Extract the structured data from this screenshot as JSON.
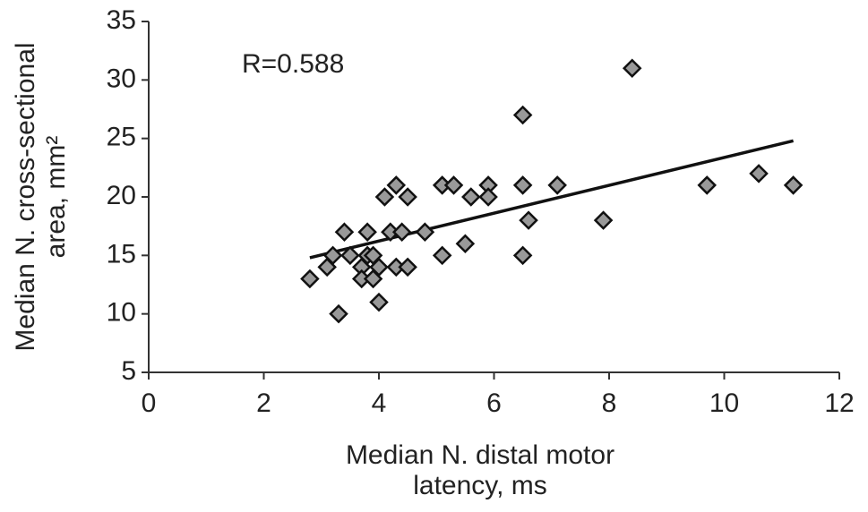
{
  "chart_data": {
    "type": "scatter",
    "annotation": "R=0.588",
    "annotation_color": "#e8202a",
    "x_label": [
      "Median N. distal motor",
      "latency, ms"
    ],
    "y_label": [
      "Median N. cross-sectional",
      "area, mm²"
    ],
    "marker_color": "#999999",
    "marker_edge": "#111111",
    "xlim": [
      0,
      12
    ],
    "xticks": [
      0,
      2,
      4,
      6,
      8,
      10,
      12
    ],
    "ylim": [
      5,
      35
    ],
    "yticks": [
      5,
      10,
      15,
      20,
      25,
      30,
      35
    ],
    "x": [
      2.8,
      3.1,
      3.2,
      3.3,
      3.4,
      3.5,
      3.7,
      3.7,
      3.8,
      3.8,
      3.9,
      3.9,
      4.0,
      4.0,
      4.1,
      4.2,
      4.3,
      4.3,
      4.4,
      4.5,
      4.5,
      4.8,
      5.1,
      5.1,
      5.3,
      5.5,
      5.6,
      5.9,
      5.9,
      6.5,
      6.5,
      6.5,
      6.6,
      7.1,
      7.9,
      8.4,
      9.7,
      10.6,
      11.2
    ],
    "y": [
      13,
      14,
      15,
      10,
      17,
      15,
      14,
      13,
      17,
      15,
      13,
      15,
      14,
      11,
      20,
      17,
      21,
      14,
      17,
      20,
      14,
      17,
      21,
      15,
      21,
      16,
      20,
      21,
      20,
      27,
      21,
      15,
      18,
      21,
      18,
      31,
      21,
      22,
      21
    ],
    "trendline": {
      "x": [
        2.8,
        11.2
      ],
      "y": [
        14.8,
        24.8
      ],
      "color": "#111111"
    }
  }
}
